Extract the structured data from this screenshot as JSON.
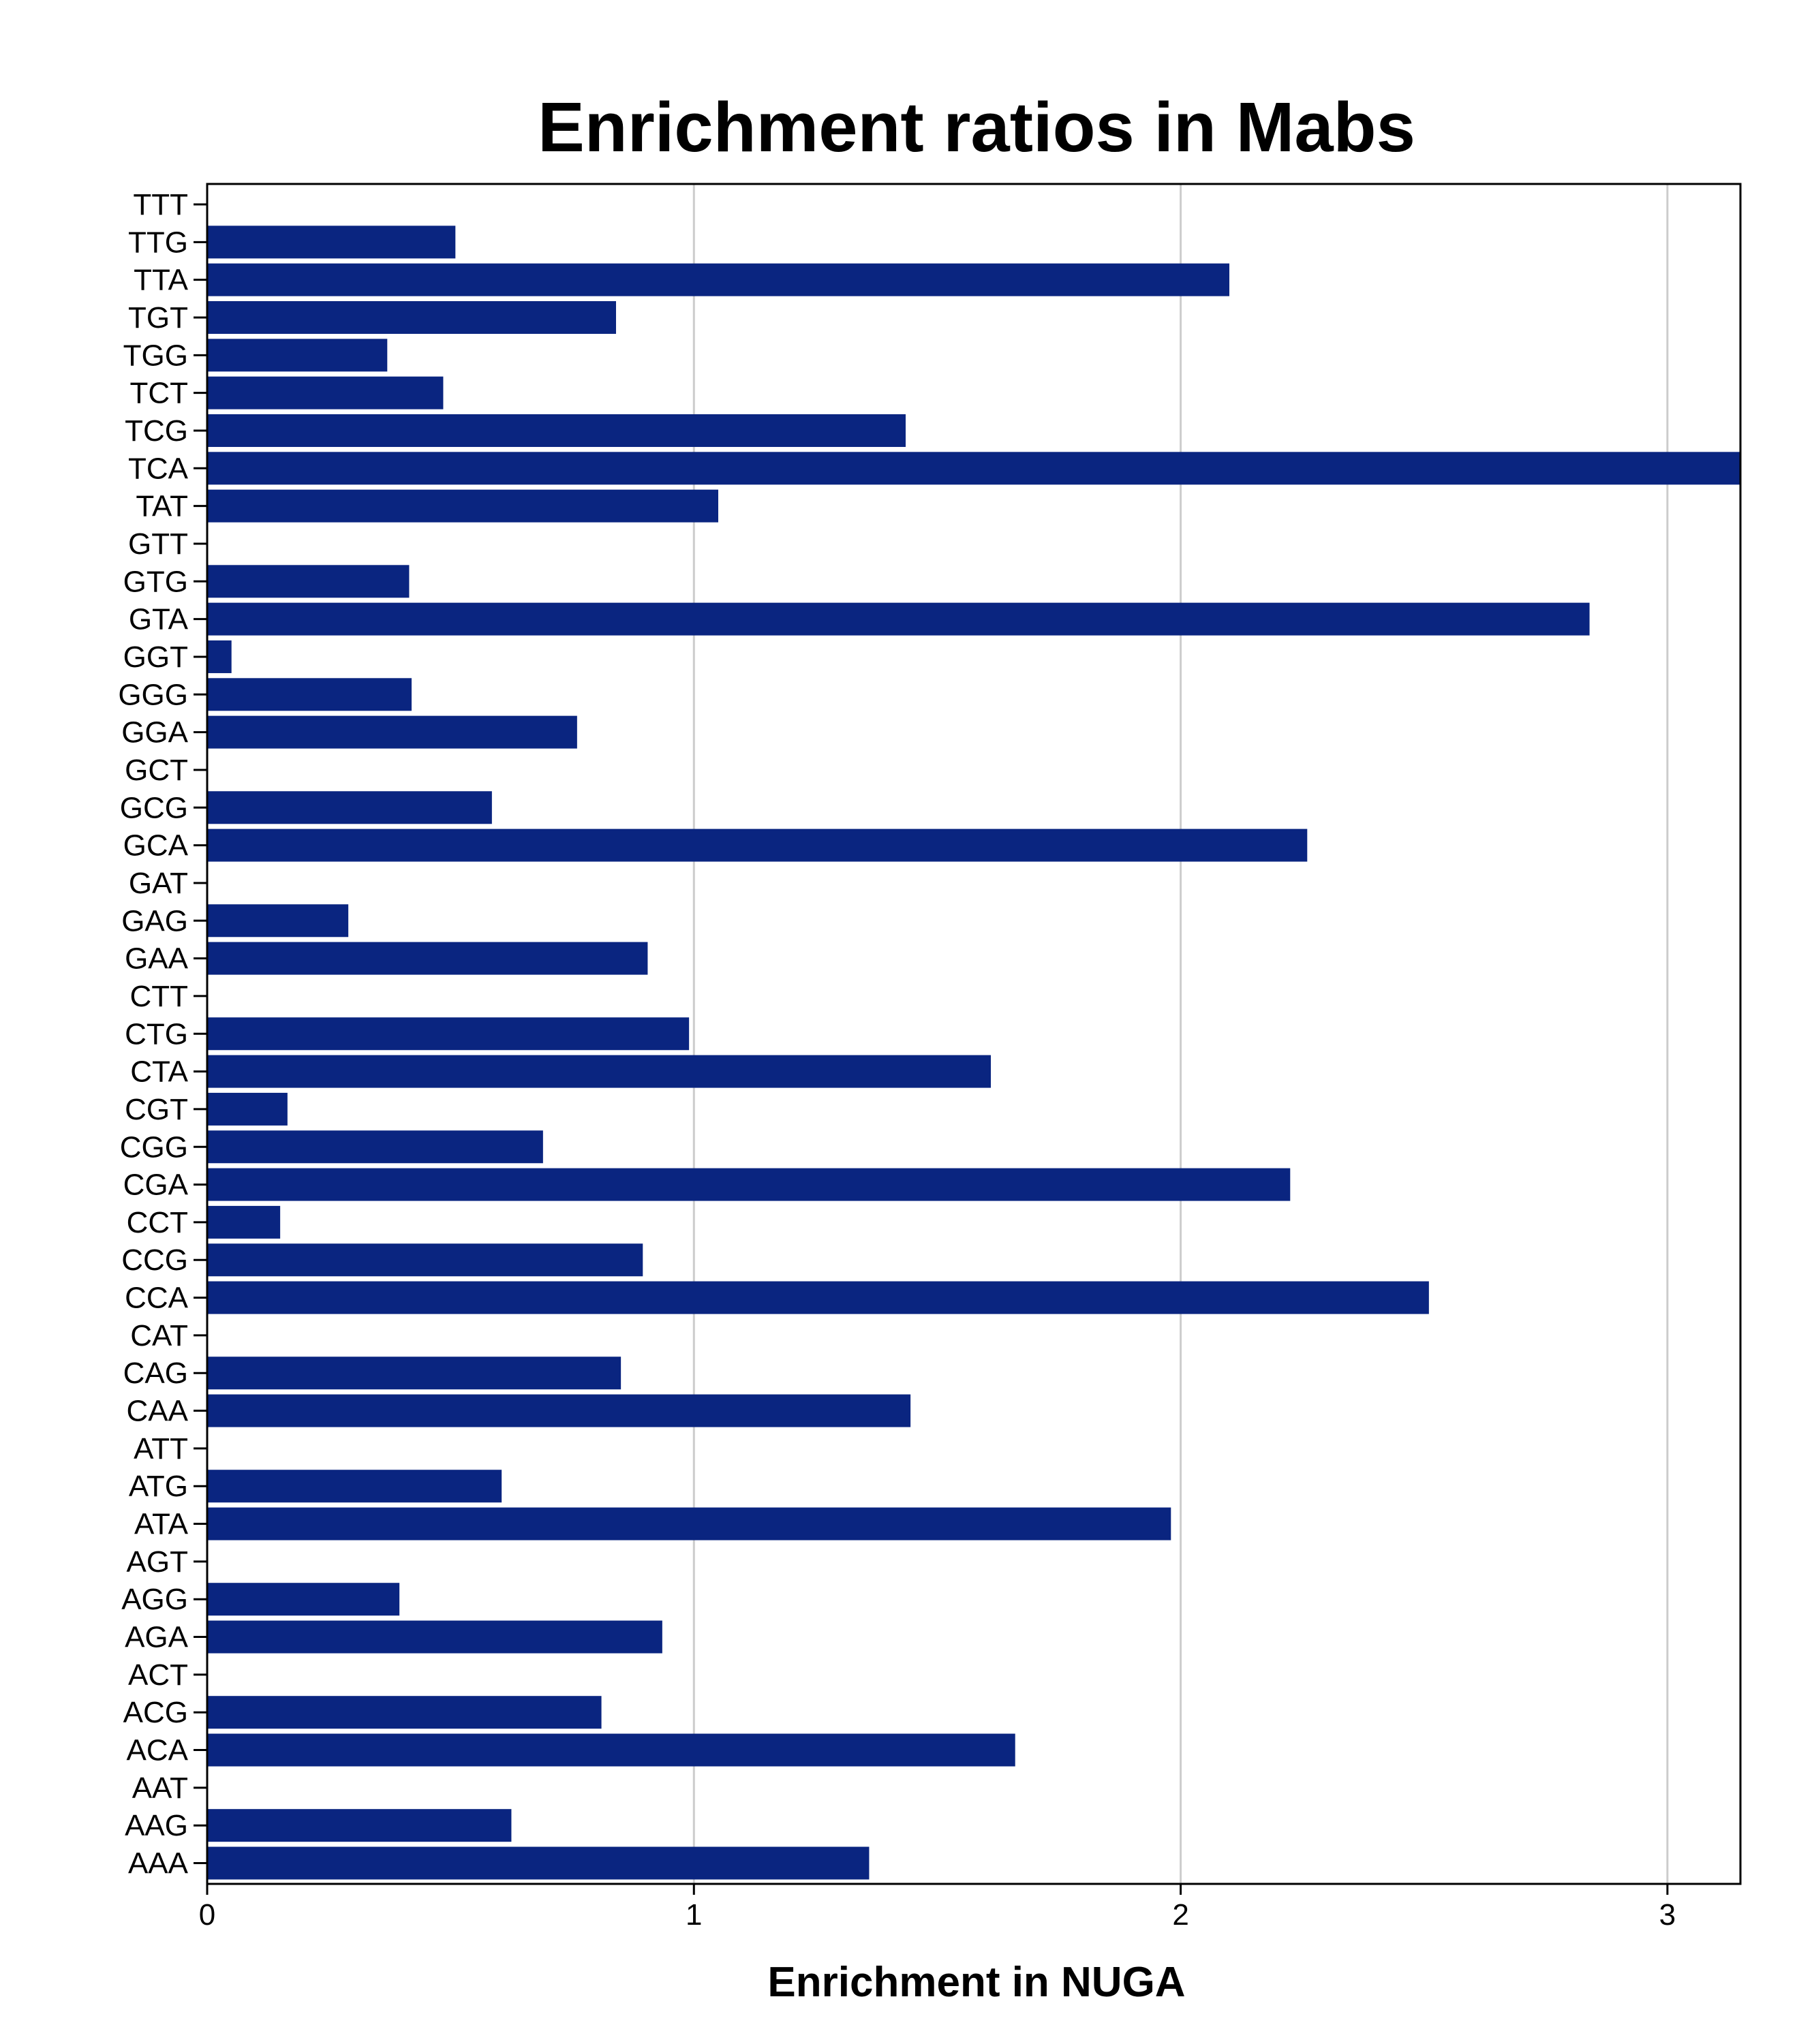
{
  "chart_data": {
    "type": "bar",
    "orientation": "horizontal",
    "title": "Enrichment ratios in Mabs",
    "xlabel": "Enrichment in NUGA",
    "ylabel": "",
    "xlim": [
      0,
      3.15
    ],
    "xticks": [
      0,
      1,
      2,
      3
    ],
    "grid": "vertical",
    "bar_color": "#0a2580",
    "categories": [
      "TTT",
      "TTG",
      "TTA",
      "TGT",
      "TGG",
      "TCT",
      "TCG",
      "TCA",
      "TAT",
      "GTT",
      "GTG",
      "GTA",
      "GGT",
      "GGG",
      "GGA",
      "GCT",
      "GCG",
      "GCA",
      "GAT",
      "GAG",
      "GAA",
      "CTT",
      "CTG",
      "CTA",
      "CGT",
      "CGG",
      "CGA",
      "CCT",
      "CCG",
      "CCA",
      "CAT",
      "CAG",
      "CAA",
      "ATT",
      "ATG",
      "ATA",
      "AGT",
      "AGG",
      "AGA",
      "ACT",
      "ACG",
      "ACA",
      "AAT",
      "AAG",
      "AAA"
    ],
    "values": [
      0,
      0.51,
      2.1,
      0.84,
      0.37,
      0.485,
      1.435,
      3.15,
      1.05,
      0,
      0.415,
      2.84,
      0.05,
      0.42,
      0.76,
      0,
      0.585,
      2.26,
      0,
      0.29,
      0.905,
      0,
      0.99,
      1.61,
      0.165,
      0.69,
      2.225,
      0.15,
      0.895,
      2.51,
      0,
      0.85,
      1.445,
      0,
      0.605,
      1.98,
      0,
      0.395,
      0.935,
      0,
      0.81,
      1.66,
      0,
      0.625,
      1.36
    ]
  }
}
